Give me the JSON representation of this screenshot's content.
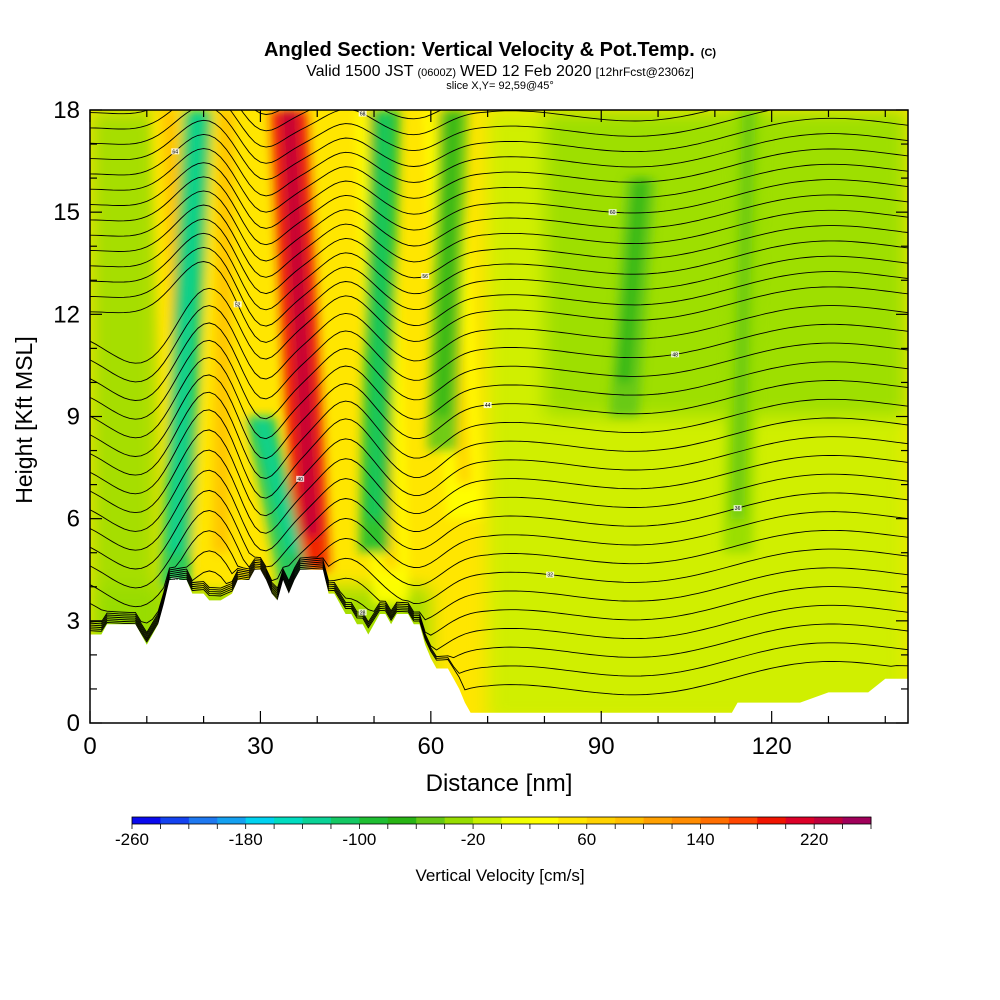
{
  "chart_data": {
    "type": "heatmap",
    "title": "Angled Section: Vertical Velocity & Pot.Temp.",
    "title_unit": "(C)",
    "subtitle_parts": [
      "Valid 1500 JST",
      "(0600Z)",
      "WED 12 Feb 2020",
      "[12hrFcst@2306z]"
    ],
    "subtitle2": "slice X,Y= 92,59@45°",
    "xlabel": "Distance [nm]",
    "ylabel": "Height [Kft MSL]",
    "xlim": [
      0,
      144
    ],
    "ylim": [
      0,
      18
    ],
    "x_ticks": [
      0,
      30,
      60,
      90,
      120
    ],
    "y_ticks": [
      0,
      3,
      6,
      9,
      12,
      15,
      18
    ],
    "colorbar": {
      "label": "Vertical Velocity [cm/s]",
      "min": -260,
      "max": 260,
      "step": 20,
      "tick_labels": [
        -260,
        -180,
        -100,
        -20,
        60,
        140,
        220
      ],
      "colors": [
        "#0a0aee",
        "#1442f0",
        "#1e78f0",
        "#14a0f0",
        "#00d2f0",
        "#00dcc0",
        "#0ad296",
        "#14c864",
        "#1ebe32",
        "#28b414",
        "#64c814",
        "#96dc00",
        "#c8f000",
        "#f0ff00",
        "#ffff00",
        "#ffe600",
        "#ffd200",
        "#ffbe00",
        "#ffa000",
        "#ff8c00",
        "#ff6e00",
        "#ff4600",
        "#f01400",
        "#dc0028",
        "#be003c",
        "#a0005a",
        "#82006e",
        "#64008c"
      ]
    },
    "updraft_bands": [
      {
        "x": 14,
        "ytop": 18,
        "ybot": 5,
        "lean": -3,
        "value": 40
      },
      {
        "x": 24,
        "ytop": 18,
        "ybot": 4,
        "lean": 1,
        "value": 40
      },
      {
        "x": 35,
        "ytop": 18,
        "ybot": 4.5,
        "lean": -4,
        "value": 190
      },
      {
        "x": 50,
        "ytop": 18,
        "ybot": 3.5,
        "lean": -3,
        "value": 30
      },
      {
        "x": 62,
        "ytop": 18,
        "ybot": 6,
        "lean": -4,
        "value": 30
      }
    ],
    "downdraft_bands": [
      {
        "x": 19,
        "ytop": 18,
        "ybot": 4,
        "lean": 4,
        "value": -120
      },
      {
        "x": 30,
        "ytop": 9,
        "ybot": 4,
        "lean": -6,
        "value": -110
      },
      {
        "x": 52,
        "ytop": 18,
        "ybot": 5,
        "lean": 2,
        "value": -100
      },
      {
        "x": 64,
        "ytop": 18,
        "ybot": 8,
        "lean": 2,
        "value": -50
      },
      {
        "x": 97,
        "ytop": 16,
        "ybot": 9,
        "lean": 3,
        "value": -50
      },
      {
        "x": 116,
        "ytop": 18,
        "ybot": 5,
        "lean": 2,
        "value": -40
      }
    ],
    "terrain": {
      "x": [
        0,
        2,
        3,
        8,
        9,
        10,
        11,
        12,
        13,
        14,
        15,
        17,
        18,
        20,
        21,
        22,
        23,
        25,
        26,
        28,
        29,
        30,
        31,
        32,
        33,
        34,
        35,
        36,
        37,
        38,
        39,
        40,
        41,
        42,
        43,
        44,
        45,
        46,
        47,
        48,
        49,
        50,
        51,
        52,
        53,
        54,
        55,
        56,
        57,
        58,
        59,
        60,
        61,
        62,
        63,
        64,
        65,
        66,
        67,
        68,
        70,
        75,
        80,
        85,
        90,
        95,
        100,
        106,
        113,
        114,
        120,
        125,
        130,
        132,
        137,
        140,
        144
      ],
      "height": [
        2.6,
        2.6,
        2.9,
        2.9,
        2.6,
        2.3,
        2.6,
        2.9,
        3.5,
        4.2,
        4.2,
        4.2,
        3.8,
        3.8,
        3.6,
        3.6,
        3.6,
        3.8,
        4.2,
        4.2,
        4.5,
        4.5,
        4.2,
        3.8,
        3.6,
        4.2,
        3.8,
        4.2,
        4.5,
        4.5,
        4.5,
        4.5,
        4.5,
        3.8,
        3.8,
        3.5,
        3.2,
        3.2,
        2.9,
        2.9,
        2.6,
        2.9,
        3.2,
        3.2,
        2.9,
        3.2,
        3.2,
        3.2,
        2.9,
        2.9,
        2.3,
        1.9,
        1.6,
        1.6,
        1.6,
        1.3,
        1.0,
        0.6,
        0.3,
        0.3,
        0.3,
        0.3,
        0.3,
        0.3,
        0.3,
        0.3,
        0.3,
        0.3,
        0.3,
        0.6,
        0.6,
        0.6,
        0.9,
        0.9,
        0.9,
        1.3,
        1.3
      ]
    },
    "isentropes": {
      "count": 36,
      "labels": [
        "24",
        "28",
        "32",
        "36",
        "40",
        "44",
        "48",
        "52",
        "56",
        "60",
        "64",
        "68"
      ]
    }
  }
}
